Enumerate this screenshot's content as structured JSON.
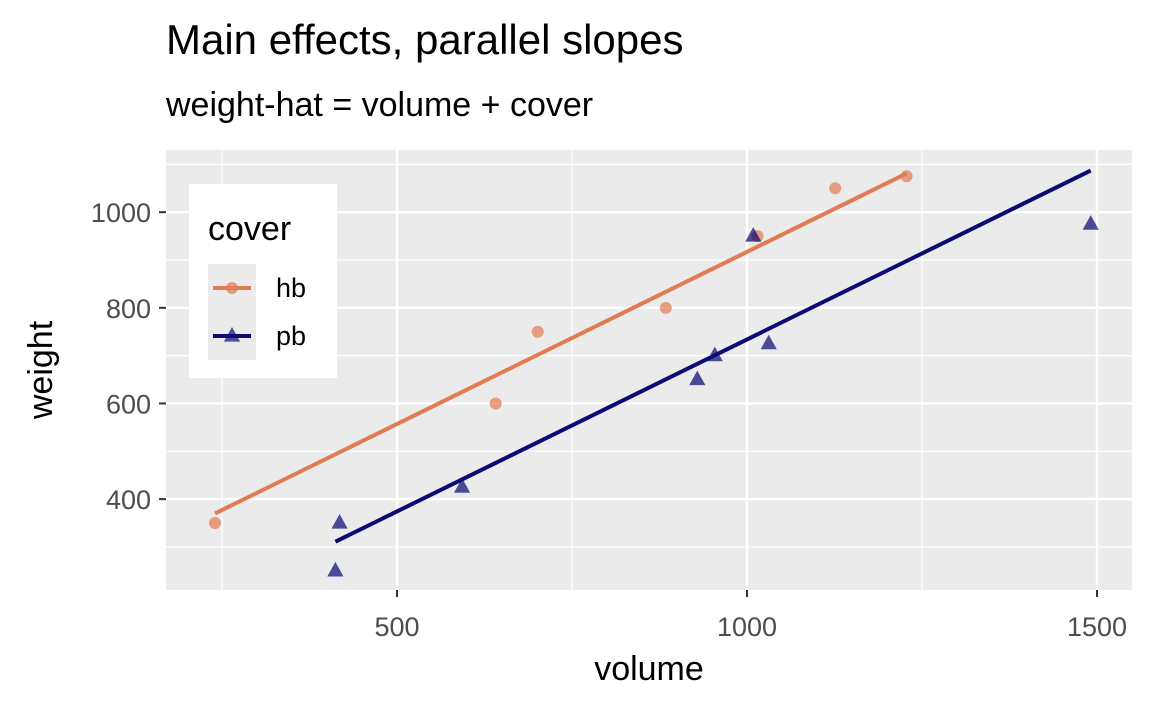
{
  "chart_data": {
    "type": "scatter",
    "title": "Main effects, parallel slopes",
    "subtitle": "weight-hat = volume + cover",
    "xlabel": "volume",
    "ylabel": "weight",
    "xlim": [
      170,
      1550
    ],
    "ylim": [
      210,
      1130
    ],
    "x_ticks": [
      500,
      1000,
      1500
    ],
    "x_minor_ticks": [
      250,
      750,
      1250
    ],
    "y_ticks": [
      400,
      600,
      800,
      1000
    ],
    "y_minor_ticks": [
      300,
      500,
      700,
      900,
      1100
    ],
    "grid": true,
    "legend": {
      "title": "cover",
      "placement": "top-left"
    },
    "series": [
      {
        "name": "hb",
        "color": "#E07B54",
        "marker": "circle",
        "points": [
          {
            "x": 240,
            "y": 350
          },
          {
            "x": 641,
            "y": 600
          },
          {
            "x": 701,
            "y": 750
          },
          {
            "x": 884,
            "y": 800
          },
          {
            "x": 1015,
            "y": 950
          },
          {
            "x": 1126,
            "y": 1050
          },
          {
            "x": 1228,
            "y": 1075
          }
        ],
        "fit_line": {
          "x": [
            240,
            1228
          ],
          "y": [
            370,
            1081
          ]
        }
      },
      {
        "name": "pb",
        "color": "#0B0B73",
        "marker": "triangle",
        "points": [
          {
            "x": 412,
            "y": 250
          },
          {
            "x": 418,
            "y": 350
          },
          {
            "x": 593,
            "y": 425
          },
          {
            "x": 929,
            "y": 650
          },
          {
            "x": 954,
            "y": 700
          },
          {
            "x": 1009,
            "y": 950
          },
          {
            "x": 1031,
            "y": 725
          },
          {
            "x": 1491,
            "y": 975
          }
        ],
        "fit_line": {
          "x": [
            412,
            1491
          ],
          "y": [
            311,
            1087
          ]
        }
      }
    ]
  }
}
